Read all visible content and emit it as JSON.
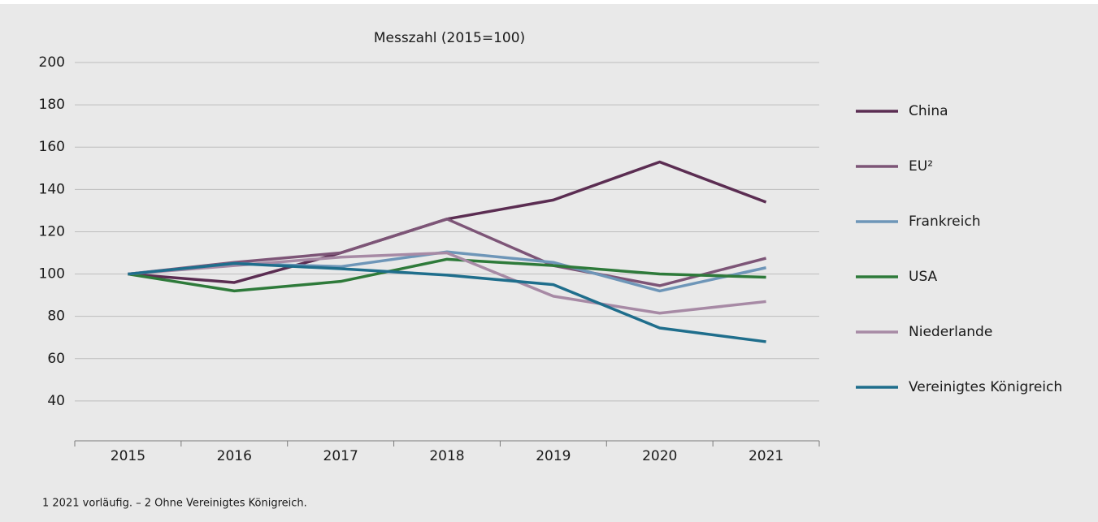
{
  "chart_data": {
    "type": "line",
    "title": "Messzahl (2015=100)",
    "categories": [
      "2015",
      "2016",
      "2017",
      "2018",
      "2019",
      "2020",
      "2021"
    ],
    "series": [
      {
        "name": "China",
        "color": "#5b2d52",
        "values": [
          100,
          96,
          110,
          126,
          135,
          153,
          134
        ]
      },
      {
        "name": "EU²",
        "color": "#7d5577",
        "values": [
          100,
          105.5,
          110,
          126,
          104,
          94.5,
          107.5
        ]
      },
      {
        "name": "Frankreich",
        "color": "#6e96b8",
        "values": [
          100,
          105,
          103.5,
          110.5,
          105.5,
          92,
          103
        ]
      },
      {
        "name": "USA",
        "color": "#2e7a3a",
        "values": [
          100,
          92,
          96.5,
          107,
          104,
          100,
          98.5
        ]
      },
      {
        "name": "Niederlande",
        "color": "#a78aa5",
        "values": [
          100,
          104,
          108,
          110,
          89.5,
          81.5,
          87
        ]
      },
      {
        "name": "Vereinigtes Königreich",
        "color": "#1f6e8c",
        "values": [
          100,
          105,
          102.5,
          99.5,
          95,
          74.5,
          68
        ]
      }
    ],
    "ylim": [
      20,
      200
    ],
    "yticks": [
      40,
      60,
      80,
      100,
      120,
      140,
      160,
      180,
      200
    ],
    "grid": true,
    "legend": "right",
    "footnote": "1  2021 vorläufig. – 2 Ohne Vereinigtes Königreich."
  }
}
